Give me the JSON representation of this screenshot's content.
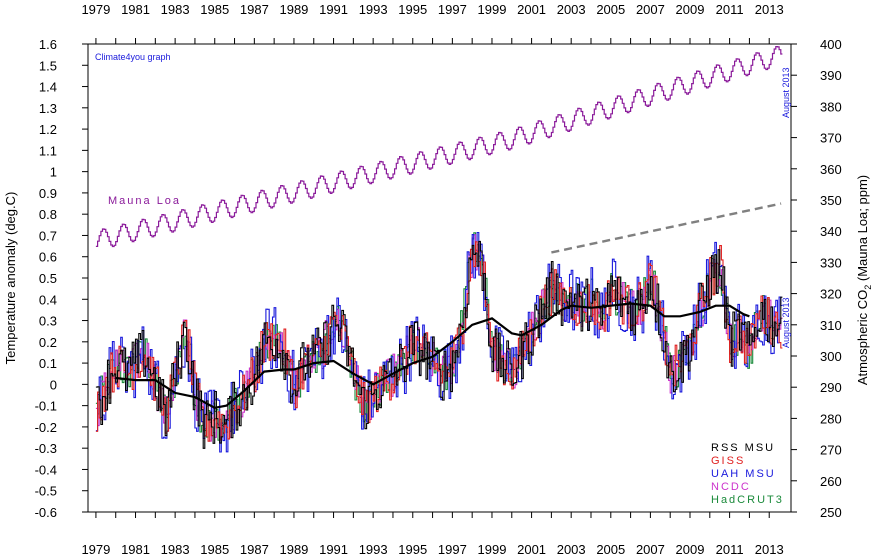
{
  "chart_data": {
    "type": "line",
    "credit": "Climate4you graph",
    "x_ticks": [
      "1979",
      "1981",
      "1983",
      "1985",
      "1987",
      "1989",
      "1991",
      "1993",
      "1995",
      "1997",
      "1999",
      "2001",
      "2003",
      "2005",
      "2007",
      "2009",
      "2011",
      "2013"
    ],
    "left_axis": {
      "label": "Temperature anomaly (deg.C)",
      "range": [
        -0.6,
        1.6
      ],
      "ticks": [
        "1.6",
        "1.5",
        "1.4",
        "1.3",
        "1.2",
        "1.1",
        "1",
        "0.9",
        "0.8",
        "0.7",
        "0.6",
        "0.5",
        "0.4",
        "0.3",
        "0.2",
        "0.1",
        "0",
        "-0.1",
        "-0.2",
        "-0.3",
        "-0.4",
        "-0.5",
        "-0.6"
      ]
    },
    "right_axis": {
      "label_main": "Atmospheric CO",
      "label_sub": "2",
      "label_rest": " (Mauna Loa; ppm)",
      "range": [
        250,
        400
      ],
      "ticks": [
        "400",
        "390",
        "380",
        "370",
        "360",
        "350",
        "340",
        "330",
        "320",
        "310",
        "300",
        "290",
        "280",
        "270",
        "260",
        "250"
      ]
    },
    "annotations": {
      "mauna_loa": "Mauna Loa",
      "co2_end": "August 2013",
      "temp_end": "August 2013"
    },
    "legend": [
      {
        "name": "RSS MSU",
        "color": "#000000"
      },
      {
        "name": "GISS",
        "color": "#e02020"
      },
      {
        "name": "UAH MSU",
        "color": "#1a1adc"
      },
      {
        "name": "NCDC",
        "color": "#cc33cc"
      },
      {
        "name": "HadCRUT3",
        "color": "#1a8a3a"
      }
    ],
    "co2_color": "#8a1a9a",
    "smooth_color": "#000000",
    "dashed_color": "#808080",
    "temperature_anchors": [
      [
        1979.0,
        -0.12
      ],
      [
        1979.5,
        0.0
      ],
      [
        1980.0,
        0.1
      ],
      [
        1980.5,
        0.05
      ],
      [
        1981.0,
        0.1
      ],
      [
        1981.5,
        0.15
      ],
      [
        1982.0,
        0.0
      ],
      [
        1982.5,
        -0.15
      ],
      [
        1983.0,
        0.05
      ],
      [
        1983.5,
        0.25
      ],
      [
        1984.0,
        -0.05
      ],
      [
        1984.5,
        -0.2
      ],
      [
        1985.0,
        -0.15
      ],
      [
        1985.5,
        -0.2
      ],
      [
        1986.0,
        -0.1
      ],
      [
        1986.5,
        -0.05
      ],
      [
        1987.0,
        0.05
      ],
      [
        1987.5,
        0.2
      ],
      [
        1988.0,
        0.22
      ],
      [
        1988.5,
        0.15
      ],
      [
        1989.0,
        -0.02
      ],
      [
        1989.5,
        0.1
      ],
      [
        1990.0,
        0.12
      ],
      [
        1990.5,
        0.18
      ],
      [
        1991.0,
        0.3
      ],
      [
        1991.5,
        0.22
      ],
      [
        1992.0,
        0.05
      ],
      [
        1992.5,
        -0.1
      ],
      [
        1993.0,
        -0.05
      ],
      [
        1993.5,
        0.0
      ],
      [
        1994.0,
        0.05
      ],
      [
        1994.5,
        0.1
      ],
      [
        1995.0,
        0.2
      ],
      [
        1995.5,
        0.15
      ],
      [
        1996.0,
        0.1
      ],
      [
        1996.5,
        0.05
      ],
      [
        1997.0,
        0.1
      ],
      [
        1997.5,
        0.3
      ],
      [
        1998.0,
        0.65
      ],
      [
        1998.5,
        0.55
      ],
      [
        1999.0,
        0.15
      ],
      [
        1999.5,
        0.1
      ],
      [
        2000.0,
        0.05
      ],
      [
        2000.5,
        0.15
      ],
      [
        2001.0,
        0.25
      ],
      [
        2001.5,
        0.35
      ],
      [
        2002.0,
        0.45
      ],
      [
        2002.5,
        0.4
      ],
      [
        2003.0,
        0.4
      ],
      [
        2003.5,
        0.35
      ],
      [
        2004.0,
        0.4
      ],
      [
        2004.5,
        0.3
      ],
      [
        2005.0,
        0.45
      ],
      [
        2005.5,
        0.4
      ],
      [
        2006.0,
        0.35
      ],
      [
        2006.5,
        0.38
      ],
      [
        2007.0,
        0.5
      ],
      [
        2007.5,
        0.3
      ],
      [
        2008.0,
        0.05
      ],
      [
        2008.5,
        0.1
      ],
      [
        2009.0,
        0.2
      ],
      [
        2009.5,
        0.35
      ],
      [
        2010.0,
        0.5
      ],
      [
        2010.5,
        0.55
      ],
      [
        2011.0,
        0.2
      ],
      [
        2011.5,
        0.25
      ],
      [
        2012.0,
        0.15
      ],
      [
        2012.5,
        0.35
      ],
      [
        2013.0,
        0.3
      ],
      [
        2013.6,
        0.28
      ]
    ],
    "smooth_anchors": [
      [
        1980.0,
        0.03
      ],
      [
        1981.0,
        0.02
      ],
      [
        1982.0,
        0.02
      ],
      [
        1983.0,
        -0.04
      ],
      [
        1984.0,
        -0.06
      ],
      [
        1985.0,
        -0.11
      ],
      [
        1985.6,
        -0.1
      ],
      [
        1986.5,
        -0.03
      ],
      [
        1987.5,
        0.06
      ],
      [
        1988.5,
        0.07
      ],
      [
        1989.0,
        0.07
      ],
      [
        1990.0,
        0.1
      ],
      [
        1991.0,
        0.11
      ],
      [
        1992.0,
        0.05
      ],
      [
        1993.0,
        0.0
      ],
      [
        1994.0,
        0.05
      ],
      [
        1995.0,
        0.1
      ],
      [
        1996.0,
        0.13
      ],
      [
        1997.0,
        0.2
      ],
      [
        1998.0,
        0.28
      ],
      [
        1999.0,
        0.31
      ],
      [
        2000.0,
        0.24
      ],
      [
        2000.5,
        0.23
      ],
      [
        2001.5,
        0.28
      ],
      [
        2002.5,
        0.35
      ],
      [
        2003.0,
        0.37
      ],
      [
        2004.0,
        0.36
      ],
      [
        2005.0,
        0.37
      ],
      [
        2006.0,
        0.38
      ],
      [
        2007.0,
        0.37
      ],
      [
        2007.7,
        0.32
      ],
      [
        2008.5,
        0.32
      ],
      [
        2009.5,
        0.34
      ],
      [
        2010.3,
        0.37
      ],
      [
        2011.0,
        0.37
      ],
      [
        2011.7,
        0.33
      ],
      [
        2012.0,
        0.32
      ]
    ],
    "dashed_line": {
      "start": [
        2002.0,
        0.62
      ],
      "end": [
        2013.6,
        0.85
      ]
    },
    "co2_anchors": [
      [
        1979.0,
        337
      ],
      [
        1990.0,
        354
      ],
      [
        2000.0,
        369.5
      ],
      [
        2008.0,
        385.5
      ],
      [
        2013.6,
        396.5
      ]
    ],
    "co2_seasonal_amplitude_ppm": 3.2
  }
}
